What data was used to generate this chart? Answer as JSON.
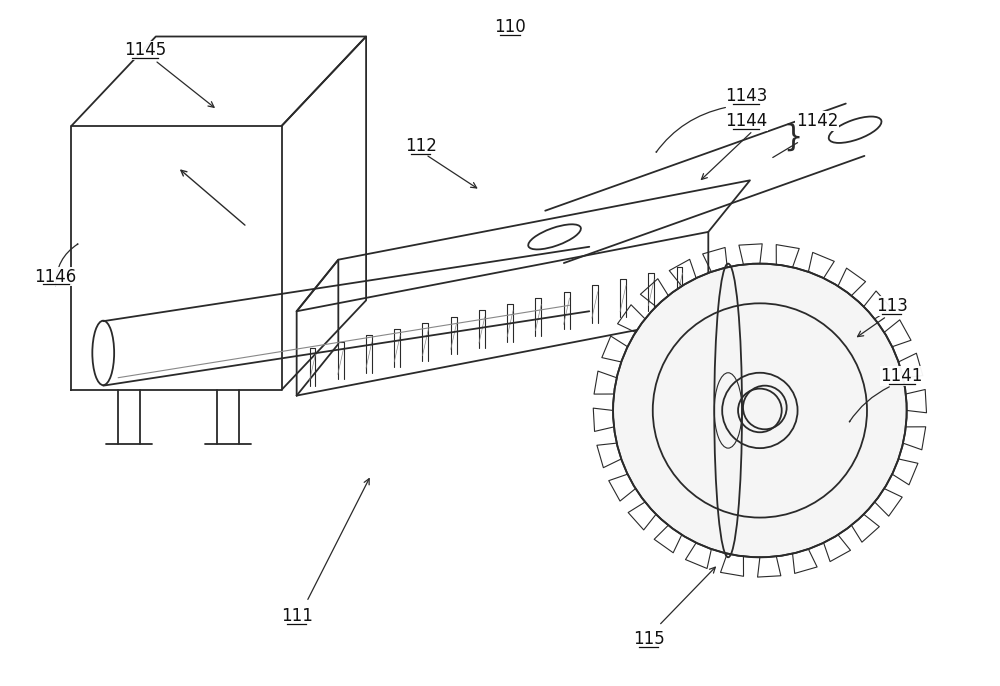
{
  "bg_color": "#ffffff",
  "line_color": "#2a2a2a",
  "label_color": "#111111",
  "font_size": 12,
  "lw_main": 1.3,
  "lw_thin": 0.8,
  "lw_label": 0.9
}
